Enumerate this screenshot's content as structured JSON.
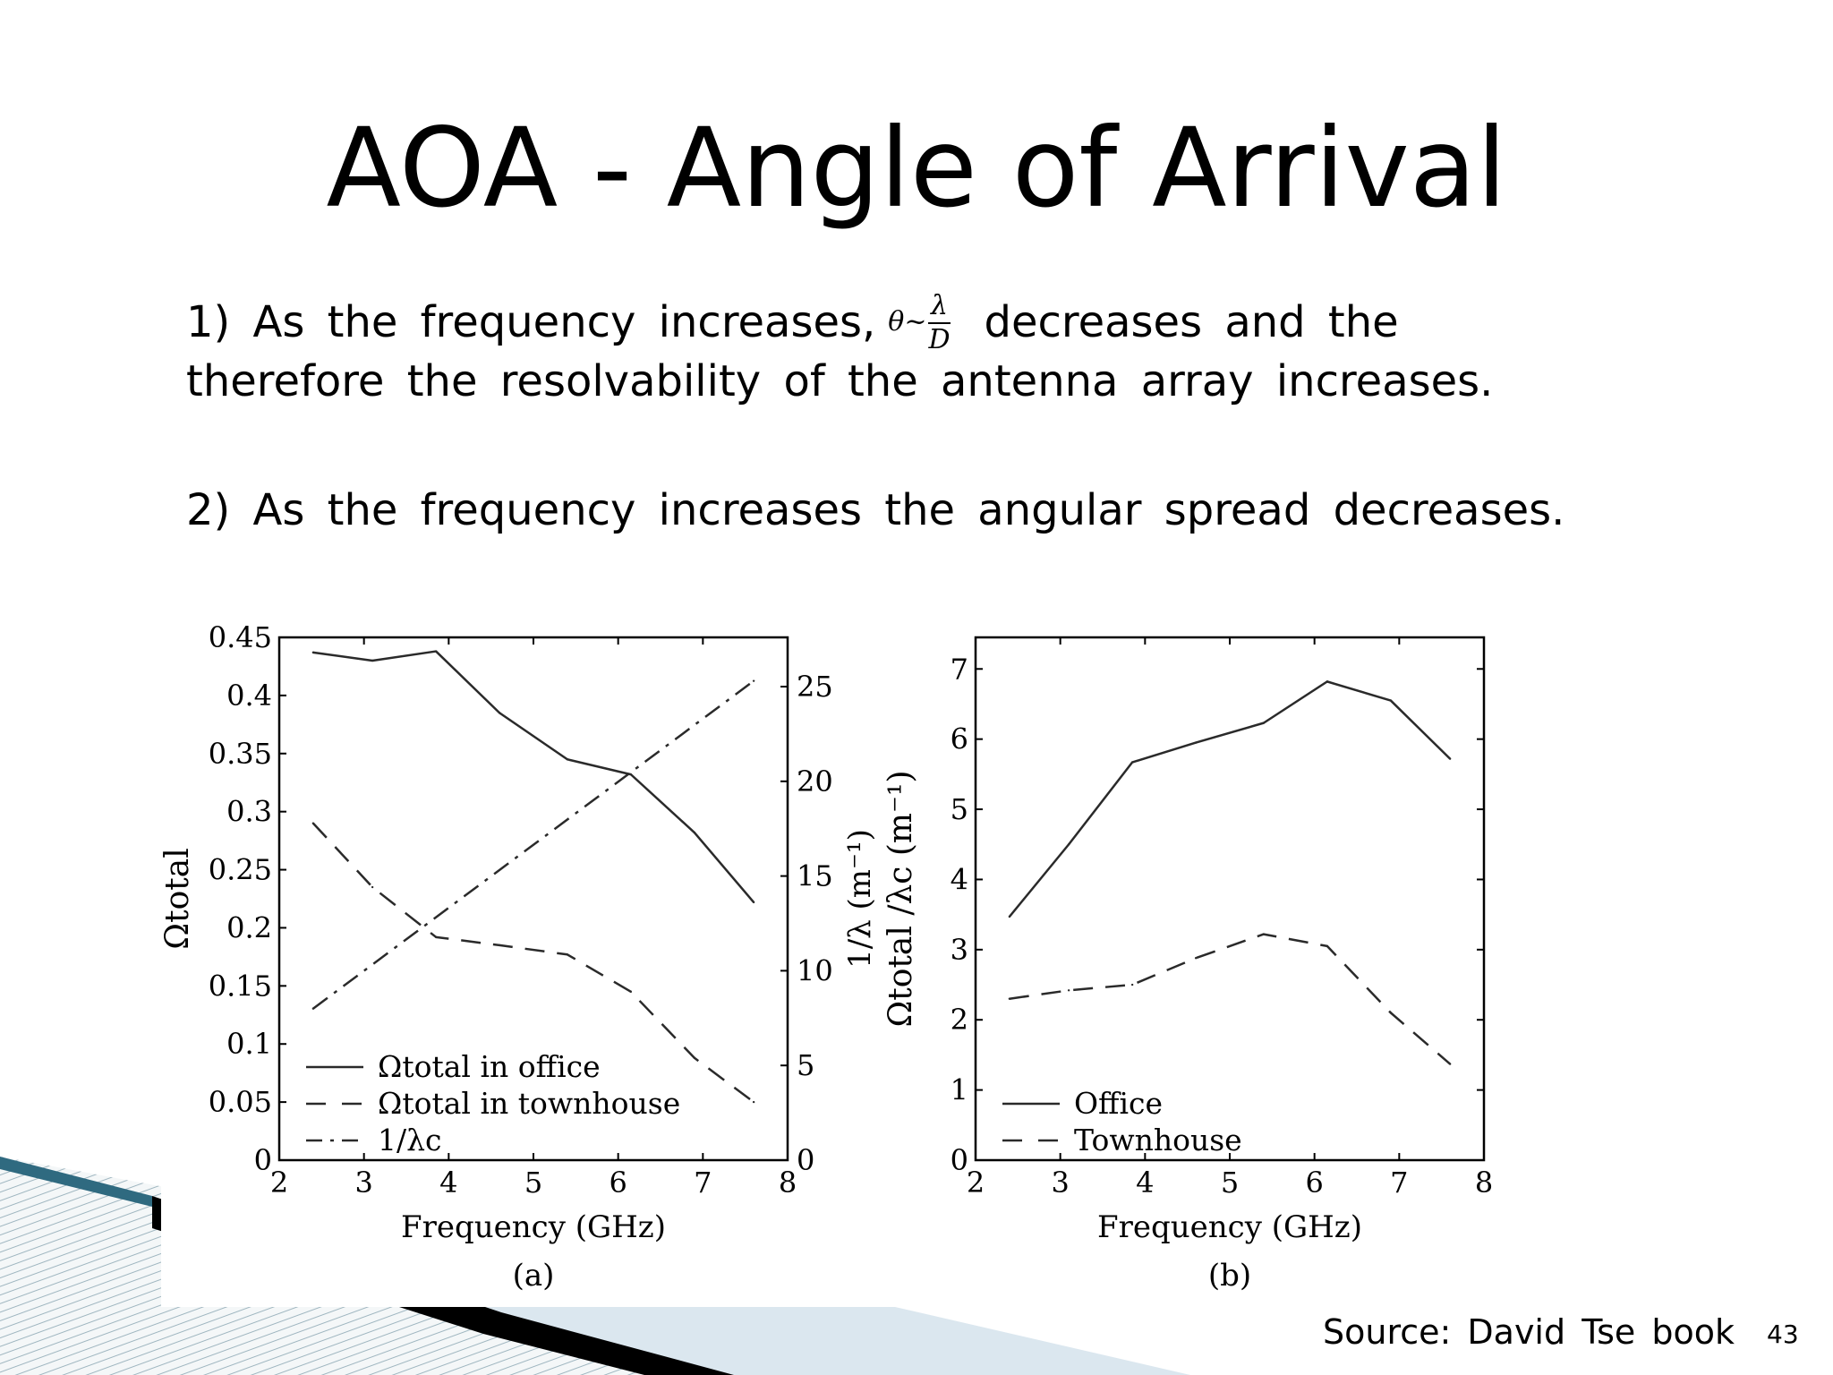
{
  "slide": {
    "title": "AOA - Angle of Arrival",
    "point1_prefix": "1) As the frequency increases,",
    "point1_suffix": "decreases and the",
    "point1_line2": "therefore the resolvability of the antenna array increases.",
    "formula": {
      "lhs": "θ",
      "op": "~",
      "numerator": "λ",
      "denominator": "D"
    },
    "point2": "2) As the frequency increases the angular spread decreases.",
    "source": "Source: David Tse book",
    "page_number": "43"
  },
  "chart_data": [
    {
      "type": "line",
      "caption": "(a)",
      "xlabel": "Frequency (GHz)",
      "ylabel": "Ωtotal",
      "y2label": "1/λ (m⁻¹)",
      "xlim": [
        2,
        8
      ],
      "ylim": [
        0,
        0.45
      ],
      "y2lim": [
        0,
        27.6
      ],
      "xticks": [
        "2",
        "3",
        "4",
        "5",
        "6",
        "7",
        "8"
      ],
      "yticks": [
        "0",
        "0.05",
        "0.1",
        "0.15",
        "0.2",
        "0.25",
        "0.3",
        "0.35",
        "0.4",
        "0.45"
      ],
      "y2ticks": [
        "0",
        "5",
        "10",
        "15",
        "20",
        "25"
      ],
      "legend_position": "bottom-left",
      "series": [
        {
          "name": "Ωtotal in office",
          "style": "solid",
          "axis": "left",
          "x": [
            2.4,
            3.1,
            3.85,
            4.6,
            5.4,
            6.15,
            6.9,
            7.6
          ],
          "y": [
            0.437,
            0.43,
            0.438,
            0.385,
            0.345,
            0.332,
            0.282,
            0.222
          ]
        },
        {
          "name": "Ωtotal in townhouse",
          "style": "dashed",
          "axis": "left",
          "x": [
            2.4,
            3.1,
            3.85,
            4.6,
            5.4,
            6.15,
            6.9,
            7.6
          ],
          "y": [
            0.29,
            0.235,
            0.192,
            0.185,
            0.177,
            0.145,
            0.088,
            0.05
          ]
        },
        {
          "name": "1/λc",
          "style": "dashdot",
          "axis": "right",
          "x": [
            2.4,
            7.6
          ],
          "y": [
            8.0,
            25.3
          ]
        }
      ]
    },
    {
      "type": "line",
      "caption": "(b)",
      "xlabel": "Frequency (GHz)",
      "ylabel": "Ωtotal /λc (m⁻¹)",
      "xlim": [
        2,
        8
      ],
      "ylim": [
        0,
        7.45
      ],
      "xticks": [
        "2",
        "3",
        "4",
        "5",
        "6",
        "7",
        "8"
      ],
      "yticks": [
        "0",
        "1",
        "2",
        "3",
        "4",
        "5",
        "6",
        "7"
      ],
      "legend_position": "bottom-left",
      "series": [
        {
          "name": "Office",
          "style": "solid",
          "x": [
            2.4,
            3.1,
            3.85,
            4.6,
            5.4,
            6.15,
            6.9,
            7.6
          ],
          "y": [
            3.47,
            4.5,
            5.67,
            5.95,
            6.23,
            6.82,
            6.55,
            5.72
          ]
        },
        {
          "name": "Townhouse",
          "style": "dashed",
          "x": [
            2.4,
            3.1,
            3.85,
            4.6,
            5.4,
            6.15,
            6.9,
            7.6
          ],
          "y": [
            2.3,
            2.42,
            2.5,
            2.88,
            3.22,
            3.05,
            2.1,
            1.37
          ]
        }
      ]
    }
  ]
}
